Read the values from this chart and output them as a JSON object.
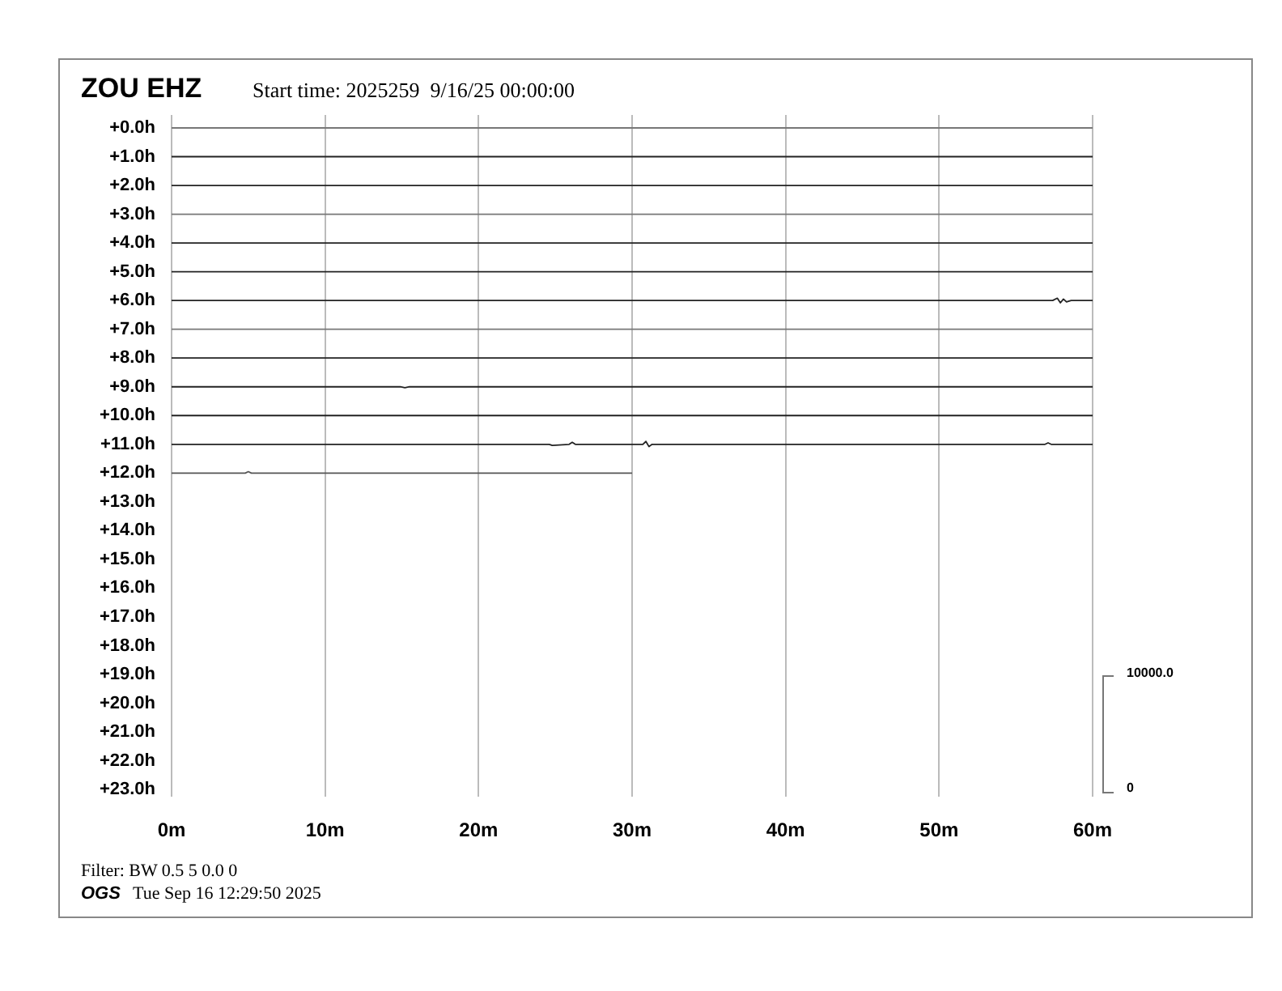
{
  "chart_data": {
    "type": "line",
    "title": "ZOU EHZ",
    "subtitle": "Start time: 2025259  9/16/25 00:00:00",
    "annotations": [
      "Filter: BW 0.5 5 0.0 0",
      "OGS",
      "Tue Sep 16 12:29:50 2025",
      "10000.0",
      "0"
    ],
    "xlim": [
      0,
      60
    ],
    "xticks": [
      {
        "value": 0,
        "label": "0m"
      },
      {
        "value": 10,
        "label": "10m"
      },
      {
        "value": 20,
        "label": "20m"
      },
      {
        "value": 30,
        "label": "30m"
      },
      {
        "value": 40,
        "label": "40m"
      },
      {
        "value": 50,
        "label": "50m"
      },
      {
        "value": 60,
        "label": "60m"
      }
    ],
    "ylim": [
      23.25,
      -0.45
    ],
    "yticks": [
      {
        "value": 0,
        "label": "+0.0h"
      },
      {
        "value": 1,
        "label": "+1.0h"
      },
      {
        "value": 2,
        "label": "+2.0h"
      },
      {
        "value": 3,
        "label": "+3.0h"
      },
      {
        "value": 4,
        "label": "+4.0h"
      },
      {
        "value": 5,
        "label": "+5.0h"
      },
      {
        "value": 6,
        "label": "+6.0h"
      },
      {
        "value": 7,
        "label": "+7.0h"
      },
      {
        "value": 8,
        "label": "+8.0h"
      },
      {
        "value": 9,
        "label": "+9.0h"
      },
      {
        "value": 10,
        "label": "+10.0h"
      },
      {
        "value": 11,
        "label": "+11.0h"
      },
      {
        "value": 12,
        "label": "+12.0h"
      },
      {
        "value": 13,
        "label": "+13.0h"
      },
      {
        "value": 14,
        "label": "+14.0h"
      },
      {
        "value": 15,
        "label": "+15.0h"
      },
      {
        "value": 16,
        "label": "+16.0h"
      },
      {
        "value": 17,
        "label": "+17.0h"
      },
      {
        "value": 18,
        "label": "+18.0h"
      },
      {
        "value": 19,
        "label": "+19.0h"
      },
      {
        "value": 20,
        "label": "+20.0h"
      },
      {
        "value": 21,
        "label": "+21.0h"
      },
      {
        "value": 22,
        "label": "+22.0h"
      },
      {
        "value": 23,
        "label": "+23.0h"
      }
    ],
    "grid": "x",
    "legend": false,
    "marker": "none",
    "line_style": "solid",
    "series": [
      {
        "color": "#777777",
        "x": [
          0,
          60
        ],
        "values": [
          0,
          0
        ]
      },
      {
        "color": "#222222",
        "x": [
          0,
          60
        ],
        "values": [
          1,
          1
        ]
      },
      {
        "color": "#222222",
        "x": [
          0,
          60
        ],
        "values": [
          2,
          2
        ]
      },
      {
        "color": "#777777",
        "x": [
          0,
          60
        ],
        "values": [
          3,
          3
        ]
      },
      {
        "color": "#222222",
        "x": [
          0,
          60
        ],
        "values": [
          4,
          4
        ]
      },
      {
        "color": "#222222",
        "x": [
          0,
          60
        ],
        "values": [
          5,
          5
        ]
      },
      {
        "color": "#222222",
        "x": [
          0,
          55,
          57.4,
          57.7,
          57.9,
          58.1,
          58.3,
          58.6,
          60
        ],
        "values": [
          6,
          6,
          6,
          5.92,
          6.08,
          5.95,
          6.05,
          6,
          6
        ]
      },
      {
        "color": "#777777",
        "x": [
          0,
          60
        ],
        "values": [
          7,
          7
        ]
      },
      {
        "color": "#222222",
        "x": [
          0,
          60
        ],
        "values": [
          8,
          8
        ]
      },
      {
        "color": "#222222",
        "x": [
          0,
          14.9,
          15.2,
          15.5,
          60
        ],
        "values": [
          9,
          9,
          9.03,
          9,
          9
        ]
      },
      {
        "color": "#222222",
        "x": [
          0,
          60
        ],
        "values": [
          10,
          10
        ]
      },
      {
        "color": "#222222",
        "x": [
          0,
          24.6,
          24.8,
          25.9,
          26.1,
          26.3,
          30.7,
          30.9,
          31.1,
          31.3,
          56.9,
          57.1,
          57.3,
          60
        ],
        "values": [
          11,
          11,
          11.04,
          11,
          10.93,
          11,
          11,
          10.9,
          11.08,
          11,
          11,
          10.95,
          11,
          11
        ]
      },
      {
        "color": "#555555",
        "x": [
          0,
          4.8,
          5,
          5.2,
          30
        ],
        "values": [
          12,
          12,
          11.95,
          12,
          12
        ]
      }
    ]
  }
}
